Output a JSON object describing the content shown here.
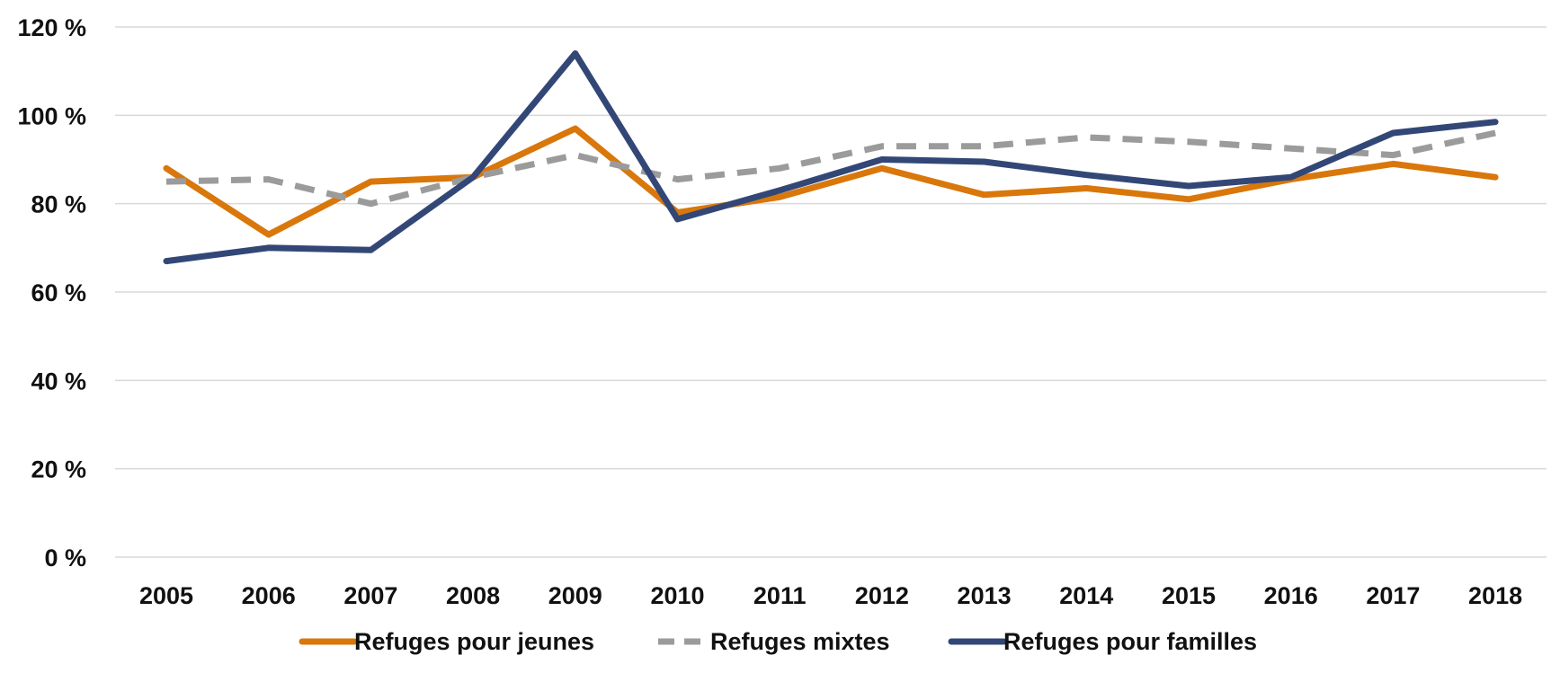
{
  "chart_data": {
    "type": "line",
    "title": "",
    "xlabel": "",
    "ylabel": "",
    "categories": [
      "2005",
      "2006",
      "2007",
      "2008",
      "2009",
      "2010",
      "2011",
      "2012",
      "2013",
      "2014",
      "2015",
      "2016",
      "2017",
      "2018"
    ],
    "ylim": [
      0,
      120
    ],
    "yticks": [
      0,
      20,
      40,
      60,
      80,
      100,
      120
    ],
    "ytick_labels": [
      "0 %",
      "20 %",
      "40 %",
      "60 %",
      "80 %",
      "100 %",
      "120 %"
    ],
    "grid": true,
    "legend_position": "bottom",
    "series": [
      {
        "name": "Refuges pour jeunes",
        "color": "#D9770B",
        "dash": "solid",
        "values": [
          88,
          73,
          85,
          86,
          97,
          78,
          81.5,
          88,
          82,
          83.5,
          81,
          85.5,
          89,
          86
        ]
      },
      {
        "name": "Refuges mixtes",
        "color": "#9B9B9B",
        "dash": "dashed",
        "values": [
          85,
          85.5,
          80,
          86,
          91,
          85.5,
          88,
          93,
          93,
          95,
          94,
          92.5,
          91,
          96
        ]
      },
      {
        "name": "Refuges pour familles",
        "color": "#334777",
        "dash": "solid",
        "values": [
          67,
          70,
          69.5,
          86,
          114,
          76.5,
          83,
          90,
          89.5,
          86.5,
          84,
          86,
          96,
          98.5
        ]
      }
    ]
  }
}
